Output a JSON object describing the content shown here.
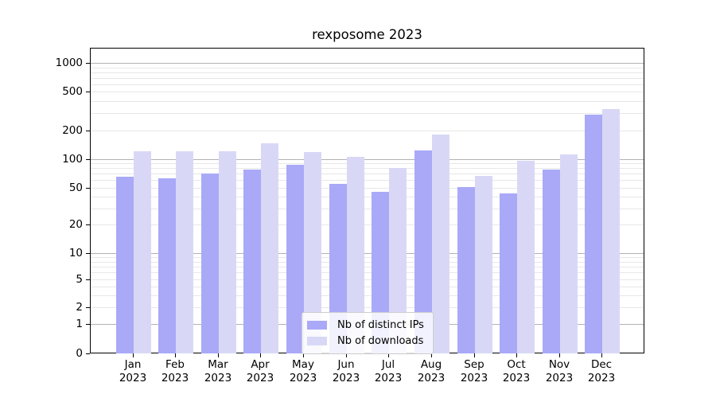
{
  "title": "rexposome 2023",
  "chart_data": {
    "type": "bar",
    "title": "rexposome 2023",
    "categories": [
      "Jan",
      "Feb",
      "Mar",
      "Apr",
      "May",
      "Jun",
      "Jul",
      "Aug",
      "Sep",
      "Oct",
      "Nov",
      "Dec"
    ],
    "x_second_line": "2023",
    "series": [
      {
        "name": "Nb of distinct IPs",
        "color": "#a9a9f8",
        "values": [
          65,
          62,
          70,
          77,
          88,
          55,
          45,
          123,
          51,
          43,
          77,
          290
        ]
      },
      {
        "name": "Nb of downloads",
        "color": "#d8d8f6",
        "values": [
          120,
          120,
          121,
          147,
          118,
          105,
          80,
          180,
          67,
          96,
          112,
          330
        ]
      }
    ],
    "ylabel": "",
    "xlabel": "",
    "y_axis": {
      "scale": "log-like",
      "tick_values": [
        1000,
        500,
        200,
        100,
        50,
        20,
        10,
        5,
        2,
        1,
        0
      ],
      "tick_labels": [
        "1000",
        "500",
        "200",
        "100",
        "50",
        "20",
        "10",
        "5",
        "2",
        "1",
        "0"
      ],
      "range": [
        0,
        1000
      ]
    },
    "grid": true,
    "legend_position": "inside-bottom-center",
    "legend_entries": [
      "Nb of distinct IPs",
      "Nb of downloads"
    ],
    "colors": {
      "major_gridline": "#b2b2b2",
      "minor_gridline": "#e7e7e7",
      "axis": "#000000"
    }
  }
}
